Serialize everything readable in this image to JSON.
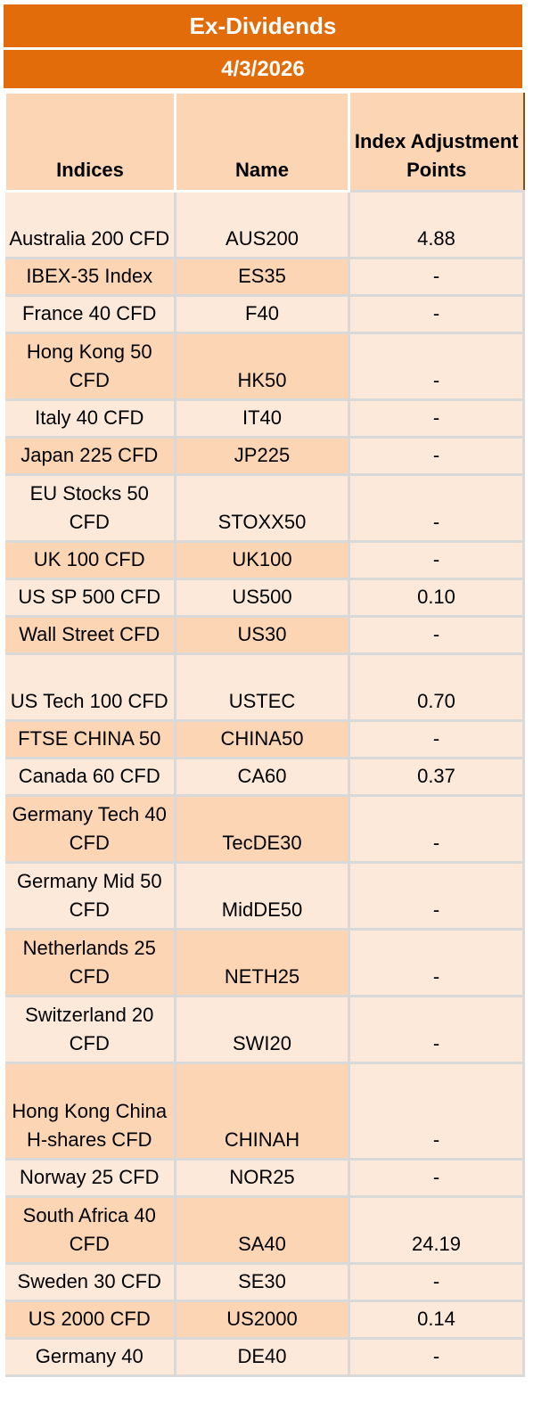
{
  "title": "Ex-Dividends",
  "date": "4/3/2026",
  "columns": {
    "indices": "Indices",
    "name": "Name",
    "adjustment": "Index Adjustment Points"
  },
  "rows": [
    {
      "indices": "Australia 200 CFD",
      "name": "AUS200",
      "points": "4.88"
    },
    {
      "indices": "IBEX-35 Index",
      "name": "ES35",
      "points": "-"
    },
    {
      "indices": "France 40 CFD",
      "name": "F40",
      "points": "-"
    },
    {
      "indices": "Hong Kong 50 CFD",
      "name": "HK50",
      "points": "-"
    },
    {
      "indices": "Italy 40 CFD",
      "name": "IT40",
      "points": "-"
    },
    {
      "indices": "Japan 225 CFD",
      "name": "JP225",
      "points": "-"
    },
    {
      "indices": "EU Stocks 50 CFD",
      "name": "STOXX50",
      "points": "-"
    },
    {
      "indices": "UK 100 CFD",
      "name": "UK100",
      "points": "-"
    },
    {
      "indices": "US SP 500 CFD",
      "name": "US500",
      "points": "0.10"
    },
    {
      "indices": "Wall Street CFD",
      "name": "US30",
      "points": "-"
    },
    {
      "indices": "US Tech 100 CFD",
      "name": "USTEC",
      "points": "0.70"
    },
    {
      "indices": "FTSE CHINA 50",
      "name": "CHINA50",
      "points": "-"
    },
    {
      "indices": "Canada 60 CFD",
      "name": "CA60",
      "points": "0.37"
    },
    {
      "indices": "Germany Tech 40 CFD",
      "name": "TecDE30",
      "points": "-"
    },
    {
      "indices": "Germany Mid 50 CFD",
      "name": "MidDE50",
      "points": "-"
    },
    {
      "indices": "Netherlands 25 CFD",
      "name": "NETH25",
      "points": "-"
    },
    {
      "indices": "Switzerland 20 CFD",
      "name": "SWI20",
      "points": "-"
    },
    {
      "indices": "Hong Kong China H-shares CFD",
      "name": "CHINAH",
      "points": "-"
    },
    {
      "indices": "Norway 25 CFD",
      "name": "NOR25",
      "points": "-"
    },
    {
      "indices": "South Africa 40 CFD",
      "name": "SA40",
      "points": "24.19"
    },
    {
      "indices": "Sweden 30 CFD",
      "name": "SE30",
      "points": "-"
    },
    {
      "indices": "US 2000 CFD",
      "name": "US2000",
      "points": "0.14"
    },
    {
      "indices": "Germany 40",
      "name": "DE40",
      "points": "-"
    }
  ]
}
